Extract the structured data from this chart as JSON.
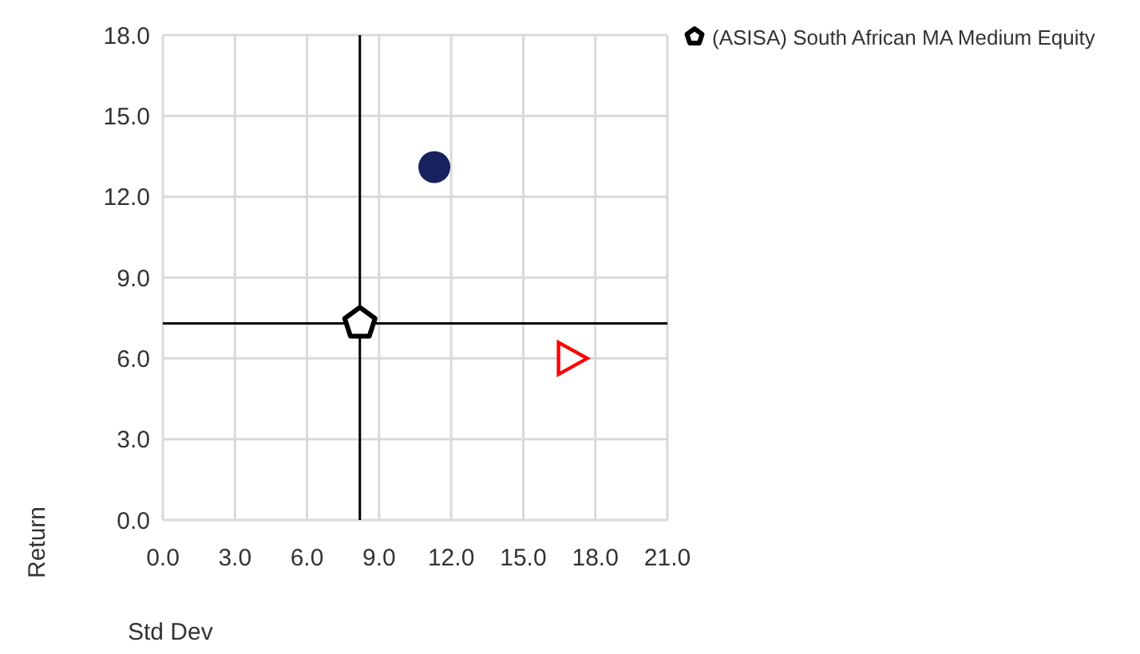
{
  "chart_data": {
    "type": "scatter",
    "xlabel": "Std Dev",
    "ylabel": "Return",
    "series": [
      {
        "color": "#16215e",
        "marker": "circle",
        "x": [
          11.3
        ],
        "values": [
          13.1
        ]
      },
      {
        "name": "(ASISA) South African MA Medium Equity",
        "color": "#000000",
        "x": [
          8.2
        ],
        "values": [
          7.3
        ]
      },
      {
        "color": "#ff0000",
        "marker": "triangle",
        "x": [
          17.0
        ],
        "values": [
          6.0
        ]
      }
    ],
    "xlim": [
      0,
      21
    ],
    "xticks": [
      {
        "value": 0,
        "label": "0.0"
      },
      {
        "value": 3,
        "label": "3.0"
      },
      {
        "value": 6,
        "label": "6.0"
      },
      {
        "value": 9,
        "label": "9.0"
      },
      {
        "value": 12,
        "label": "12.0"
      },
      {
        "value": 15,
        "label": "15.0"
      },
      {
        "value": 18,
        "label": "18.0"
      },
      {
        "value": 21,
        "label": "21.0"
      }
    ],
    "ylim": [
      0,
      18
    ],
    "yticks": [
      {
        "value": 0,
        "label": "0.0"
      },
      {
        "value": 3,
        "label": "3.0"
      },
      {
        "value": 6,
        "label": "6.0"
      },
      {
        "value": 9,
        "label": "9.0"
      },
      {
        "value": 12,
        "label": "12.0"
      },
      {
        "value": 15,
        "label": "15.0"
      },
      {
        "value": 18,
        "label": "18.0"
      }
    ],
    "ref_lines": [
      {
        "axis": "x",
        "value": 8.2,
        "color": "#000000"
      },
      {
        "axis": "y",
        "value": 7.3,
        "color": "#000000"
      }
    ],
    "grid": true,
    "legend": "top right"
  }
}
